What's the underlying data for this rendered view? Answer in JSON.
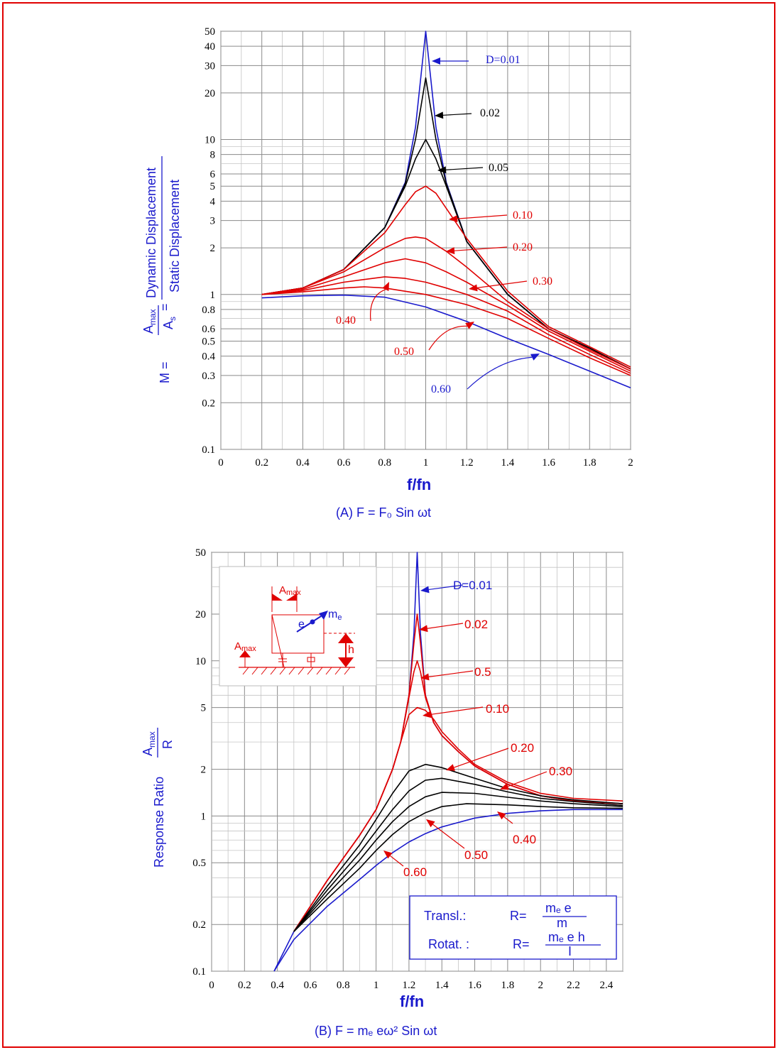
{
  "colors": {
    "blue": "#1a1acc",
    "red": "#e00000",
    "black": "#000000",
    "grid": "#9a9a9a"
  },
  "chart_data": [
    {
      "type": "line",
      "log_y": true,
      "xlim": [
        0,
        2
      ],
      "ylim": [
        0.1,
        50
      ],
      "grid": true,
      "x_ticks": [
        "0",
        "0.2",
        "0.4",
        "0.6",
        "0.8",
        "1",
        "1.2",
        "1.4",
        "1.6",
        "1.8",
        "2"
      ],
      "y_ticks": [
        "50",
        "40",
        "30",
        "20",
        "10",
        "8",
        "6",
        "5",
        "4",
        "3",
        "2",
        "1",
        "0.8",
        "0.6",
        "0.5",
        "0.4",
        "0.3",
        "0.2",
        "0.1"
      ],
      "ylabel_left": "M =",
      "ylabel_frac_num": "A",
      "ylabel_frac_num_sub": "max",
      "ylabel_frac_den": "A",
      "ylabel_frac_den_sub": "s",
      "ylabel_eq": "=",
      "ylabel_ratio_num": "Dynamic Displacement",
      "ylabel_ratio_den": "Static Displacement",
      "xlabel": "f/fn",
      "caption": "(A)  F = F₀ Sin  ωt",
      "series": [
        {
          "name": "D=0.01",
          "color": "blue",
          "x": [
            0.2,
            0.4,
            0.6,
            0.8,
            0.9,
            0.95,
            1.0,
            1.05,
            1.1,
            1.2,
            1.4,
            1.6,
            1.8,
            2.0
          ],
          "y": [
            1.0,
            1.1,
            1.45,
            2.7,
            5.3,
            12,
            50,
            12,
            5.3,
            2.2,
            1.0,
            0.6,
            0.45,
            0.33
          ]
        },
        {
          "name": "0.02",
          "color": "black",
          "x": [
            0.2,
            0.4,
            0.6,
            0.8,
            0.9,
            0.95,
            1.0,
            1.05,
            1.1,
            1.2,
            1.4,
            1.6,
            1.8,
            2.0
          ],
          "y": [
            1.0,
            1.1,
            1.45,
            2.7,
            5.2,
            10,
            25,
            10,
            5.2,
            2.2,
            1.0,
            0.6,
            0.45,
            0.33
          ]
        },
        {
          "name": "0.05",
          "color": "black",
          "x": [
            0.2,
            0.4,
            0.6,
            0.8,
            0.9,
            0.95,
            1.0,
            1.05,
            1.1,
            1.2,
            1.4,
            1.6,
            1.8,
            2.0
          ],
          "y": [
            1.0,
            1.1,
            1.45,
            2.7,
            5.0,
            7.5,
            10,
            7.5,
            5.0,
            2.2,
            1.0,
            0.6,
            0.45,
            0.33
          ]
        },
        {
          "name": "0.10",
          "color": "red",
          "x": [
            0.2,
            0.4,
            0.6,
            0.8,
            0.9,
            0.95,
            1.0,
            1.05,
            1.1,
            1.2,
            1.4,
            1.6,
            1.8,
            2.0
          ],
          "y": [
            1.0,
            1.1,
            1.45,
            2.5,
            3.8,
            4.6,
            5.0,
            4.5,
            3.6,
            2.3,
            1.05,
            0.62,
            0.46,
            0.34
          ]
        },
        {
          "name": "0.20",
          "color": "red",
          "x": [
            0.2,
            0.4,
            0.6,
            0.8,
            0.9,
            0.95,
            1.0,
            1.1,
            1.2,
            1.4,
            1.6,
            1.8,
            2.0
          ],
          "y": [
            1.0,
            1.1,
            1.4,
            2.0,
            2.3,
            2.35,
            2.3,
            1.9,
            1.5,
            0.9,
            0.6,
            0.44,
            0.33
          ]
        },
        {
          "name": "0.30",
          "color": "red",
          "x": [
            0.2,
            0.4,
            0.6,
            0.8,
            0.9,
            1.0,
            1.1,
            1.2,
            1.4,
            1.6,
            1.8,
            2.0
          ],
          "y": [
            1.0,
            1.08,
            1.3,
            1.6,
            1.7,
            1.6,
            1.4,
            1.2,
            0.85,
            0.58,
            0.43,
            0.32
          ]
        },
        {
          "name": "0.40",
          "color": "red",
          "x": [
            0.2,
            0.4,
            0.6,
            0.8,
            0.9,
            1.0,
            1.1,
            1.2,
            1.4,
            1.6,
            1.8,
            2.0
          ],
          "y": [
            1.0,
            1.06,
            1.2,
            1.3,
            1.27,
            1.2,
            1.1,
            1.0,
            0.78,
            0.55,
            0.41,
            0.31
          ]
        },
        {
          "name": "0.50",
          "color": "red",
          "x": [
            0.2,
            0.4,
            0.6,
            0.7,
            0.8,
            1.0,
            1.2,
            1.4,
            1.6,
            1.8,
            2.0
          ],
          "y": [
            1.0,
            1.04,
            1.1,
            1.12,
            1.1,
            1.0,
            0.86,
            0.7,
            0.52,
            0.39,
            0.3
          ]
        },
        {
          "name": "0.60",
          "color": "blue",
          "x": [
            0.2,
            0.4,
            0.6,
            0.8,
            1.0,
            1.2,
            1.4,
            1.6,
            1.8,
            2.0
          ],
          "y": [
            0.95,
            0.98,
            0.99,
            0.96,
            0.83,
            0.67,
            0.52,
            0.41,
            0.32,
            0.25
          ]
        }
      ],
      "annotations": [
        {
          "text": "D=0.01",
          "color": "blue"
        },
        {
          "text": "0.02",
          "color": "black"
        },
        {
          "text": "0.05",
          "color": "black"
        },
        {
          "text": "0.10",
          "color": "red"
        },
        {
          "text": "0.20",
          "color": "red"
        },
        {
          "text": "0.30",
          "color": "red"
        },
        {
          "text": "0.40",
          "color": "red"
        },
        {
          "text": "0.50",
          "color": "red"
        },
        {
          "text": "0.60",
          "color": "blue"
        }
      ]
    },
    {
      "type": "line",
      "log_y": true,
      "xlim": [
        0,
        2.5
      ],
      "ylim": [
        0.1,
        50
      ],
      "grid": true,
      "x_ticks": [
        "0",
        "0.2",
        "0.4",
        "0.6",
        "0.8",
        "1",
        "1.2",
        "1.4",
        "1.6",
        "1.8",
        "2",
        "2.2",
        "2.4"
      ],
      "y_ticks": [
        "50",
        "20",
        "10",
        "5",
        "2",
        "1",
        "0.5",
        "0.2",
        "0.1"
      ],
      "ylabel": "Response Ratio",
      "ylabel_frac_num": "A",
      "ylabel_frac_num_sub": "max",
      "ylabel_frac_den": "R",
      "xlabel": "f/fn",
      "caption": "(B)  F = mₑ eω²  Sin ωt",
      "series": [
        {
          "name": "D=0.01",
          "color": "blue",
          "x": [
            0.38,
            0.5,
            0.7,
            0.9,
            1.0,
            1.1,
            1.15,
            1.2,
            1.23,
            1.25,
            1.27,
            1.3,
            1.35,
            1.4,
            1.5,
            1.6,
            1.8,
            2.0,
            2.2,
            2.5
          ],
          "y": [
            0.1,
            0.18,
            0.38,
            0.75,
            1.1,
            2.0,
            3.0,
            6.0,
            15,
            50,
            15,
            6.0,
            4.0,
            3.3,
            2.6,
            2.1,
            1.6,
            1.35,
            1.25,
            1.2
          ]
        },
        {
          "name": "0.02",
          "color": "red",
          "x": [
            0.5,
            0.7,
            0.9,
            1.0,
            1.1,
            1.15,
            1.2,
            1.23,
            1.25,
            1.27,
            1.3,
            1.35,
            1.4,
            1.5,
            1.6,
            1.8,
            2.0,
            2.2,
            2.5
          ],
          "y": [
            0.18,
            0.38,
            0.75,
            1.1,
            2.0,
            3.0,
            6.0,
            13,
            20,
            13,
            6.0,
            4.0,
            3.3,
            2.6,
            2.1,
            1.6,
            1.35,
            1.25,
            1.2
          ]
        },
        {
          "name": "0.5",
          "color": "red",
          "x": [
            0.5,
            0.7,
            0.9,
            1.0,
            1.1,
            1.15,
            1.2,
            1.23,
            1.25,
            1.27,
            1.3,
            1.35,
            1.4,
            1.5,
            1.6,
            1.8,
            2.0,
            2.2,
            2.5
          ],
          "y": [
            0.18,
            0.38,
            0.75,
            1.1,
            2.0,
            3.0,
            5.8,
            8.5,
            10,
            8.5,
            5.8,
            4.0,
            3.3,
            2.6,
            2.1,
            1.6,
            1.35,
            1.25,
            1.2
          ]
        },
        {
          "name": "0.10",
          "color": "red",
          "x": [
            0.5,
            0.7,
            0.9,
            1.0,
            1.1,
            1.15,
            1.2,
            1.25,
            1.3,
            1.35,
            1.4,
            1.5,
            1.6,
            1.8,
            2.0,
            2.2,
            2.5
          ],
          "y": [
            0.18,
            0.38,
            0.75,
            1.1,
            2.0,
            3.0,
            4.5,
            5.0,
            4.8,
            4.2,
            3.5,
            2.7,
            2.15,
            1.65,
            1.4,
            1.3,
            1.25
          ]
        },
        {
          "name": "0.20",
          "color": "black",
          "x": [
            0.5,
            0.7,
            0.9,
            1.0,
            1.1,
            1.2,
            1.3,
            1.4,
            1.6,
            1.8,
            2.0,
            2.2,
            2.5
          ],
          "y": [
            0.18,
            0.35,
            0.65,
            0.95,
            1.4,
            1.95,
            2.15,
            2.05,
            1.75,
            1.5,
            1.35,
            1.27,
            1.2
          ]
        },
        {
          "name": "0.30",
          "color": "black",
          "x": [
            0.5,
            0.7,
            0.9,
            1.0,
            1.1,
            1.2,
            1.3,
            1.4,
            1.6,
            1.8,
            2.0,
            2.2,
            2.5
          ],
          "y": [
            0.18,
            0.33,
            0.58,
            0.8,
            1.1,
            1.45,
            1.7,
            1.75,
            1.6,
            1.43,
            1.3,
            1.24,
            1.17
          ]
        },
        {
          "name": "0.40",
          "color": "black",
          "x": [
            0.5,
            0.7,
            0.9,
            1.0,
            1.1,
            1.2,
            1.3,
            1.4,
            1.6,
            1.8,
            2.0,
            2.2,
            2.5
          ],
          "y": [
            0.18,
            0.31,
            0.52,
            0.7,
            0.92,
            1.15,
            1.33,
            1.42,
            1.4,
            1.32,
            1.25,
            1.2,
            1.15
          ]
        },
        {
          "name": "0.50",
          "color": "black",
          "x": [
            0.5,
            0.7,
            0.9,
            1.0,
            1.1,
            1.2,
            1.3,
            1.4,
            1.55,
            1.8,
            2.0,
            2.2,
            2.5
          ],
          "y": [
            0.18,
            0.29,
            0.46,
            0.6,
            0.76,
            0.92,
            1.05,
            1.15,
            1.2,
            1.18,
            1.15,
            1.13,
            1.12
          ]
        },
        {
          "name": "0.60",
          "color": "blue",
          "x": [
            0.38,
            0.5,
            0.7,
            0.9,
            1.0,
            1.1,
            1.2,
            1.3,
            1.4,
            1.6,
            1.8,
            2.0,
            2.2,
            2.5
          ],
          "y": [
            0.1,
            0.16,
            0.26,
            0.39,
            0.48,
            0.58,
            0.68,
            0.77,
            0.85,
            0.97,
            1.04,
            1.08,
            1.1,
            1.1
          ]
        }
      ],
      "annotations": [
        {
          "text": "D=0.01",
          "color": "blue"
        },
        {
          "text": "0.02",
          "color": "red"
        },
        {
          "text": "0.5",
          "color": "red"
        },
        {
          "text": "0.10",
          "color": "red"
        },
        {
          "text": "0.20",
          "color": "red"
        },
        {
          "text": "0.30",
          "color": "red"
        },
        {
          "text": "0.40",
          "color": "red"
        },
        {
          "text": "0.50",
          "color": "red"
        },
        {
          "text": "0.60",
          "color": "red"
        }
      ],
      "inset": {
        "a_max_top": "A",
        "a_max_top_sub": "max",
        "a_max_left": "A",
        "a_max_left_sub": "max",
        "m_e": "m",
        "m_e_sub": "e",
        "e": "e",
        "h": "h"
      },
      "formula_box": {
        "transl_label": "Transl.:",
        "transl_lhs": "R=",
        "transl_num": "mₑ e",
        "transl_den": "m",
        "rotat_label": "Rotat. :",
        "rotat_lhs": "R=",
        "rotat_num": "mₑ e h",
        "rotat_den": "I"
      }
    }
  ]
}
